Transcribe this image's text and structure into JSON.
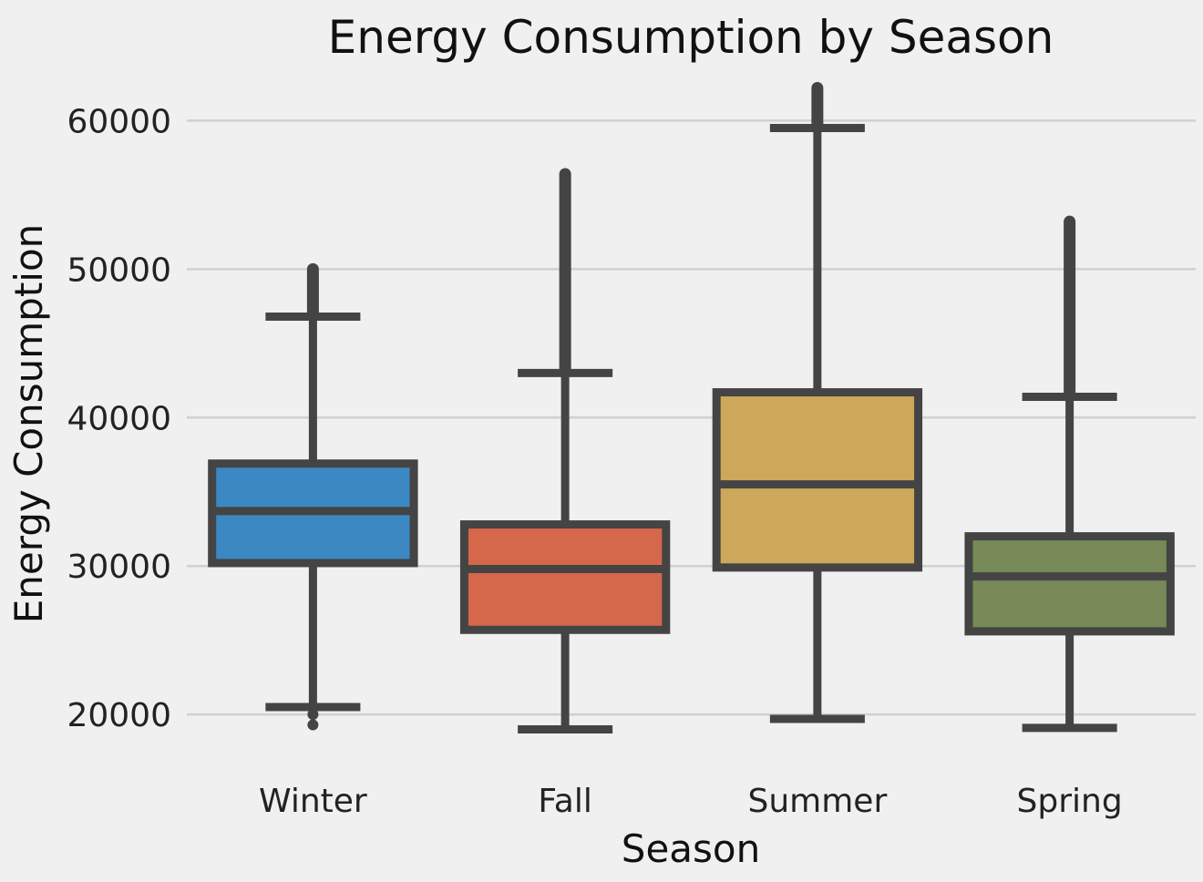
{
  "chart_data": {
    "type": "box",
    "title": "Energy Consumption by Season",
    "xlabel": "Season",
    "ylabel": "Energy Consumption",
    "ylim": [
      17800,
      62600
    ],
    "yticks": [
      20000,
      30000,
      40000,
      50000,
      60000
    ],
    "grid": "horizontal",
    "categories": [
      "Winter",
      "Fall",
      "Summer",
      "Spring"
    ],
    "colors": [
      "#3b88c2",
      "#d5674a",
      "#cda85b",
      "#768957"
    ],
    "edge_color": "#444444",
    "boxes": [
      {
        "category": "Winter",
        "whisker_low": 20500,
        "q1": 30200,
        "median": 33700,
        "q3": 36900,
        "whisker_high": 46800,
        "outliers_low": [
          19300,
          20000
        ],
        "outliers_high_range": [
          47000,
          50000
        ]
      },
      {
        "category": "Fall",
        "whisker_low": 19000,
        "q1": 25700,
        "median": 29800,
        "q3": 32800,
        "whisker_high": 43000,
        "outliers_low": [],
        "outliers_high_range": [
          43200,
          56400
        ]
      },
      {
        "category": "Summer",
        "whisker_low": 19700,
        "q1": 29900,
        "median": 35500,
        "q3": 41700,
        "whisker_high": 59500,
        "outliers_low": [],
        "outliers_high_range": [
          59700,
          62200
        ]
      },
      {
        "category": "Spring",
        "whisker_low": 19100,
        "q1": 25600,
        "median": 29300,
        "q3": 32000,
        "whisker_high": 41400,
        "outliers_low": [],
        "outliers_high_range": [
          41600,
          53200
        ]
      }
    ]
  }
}
